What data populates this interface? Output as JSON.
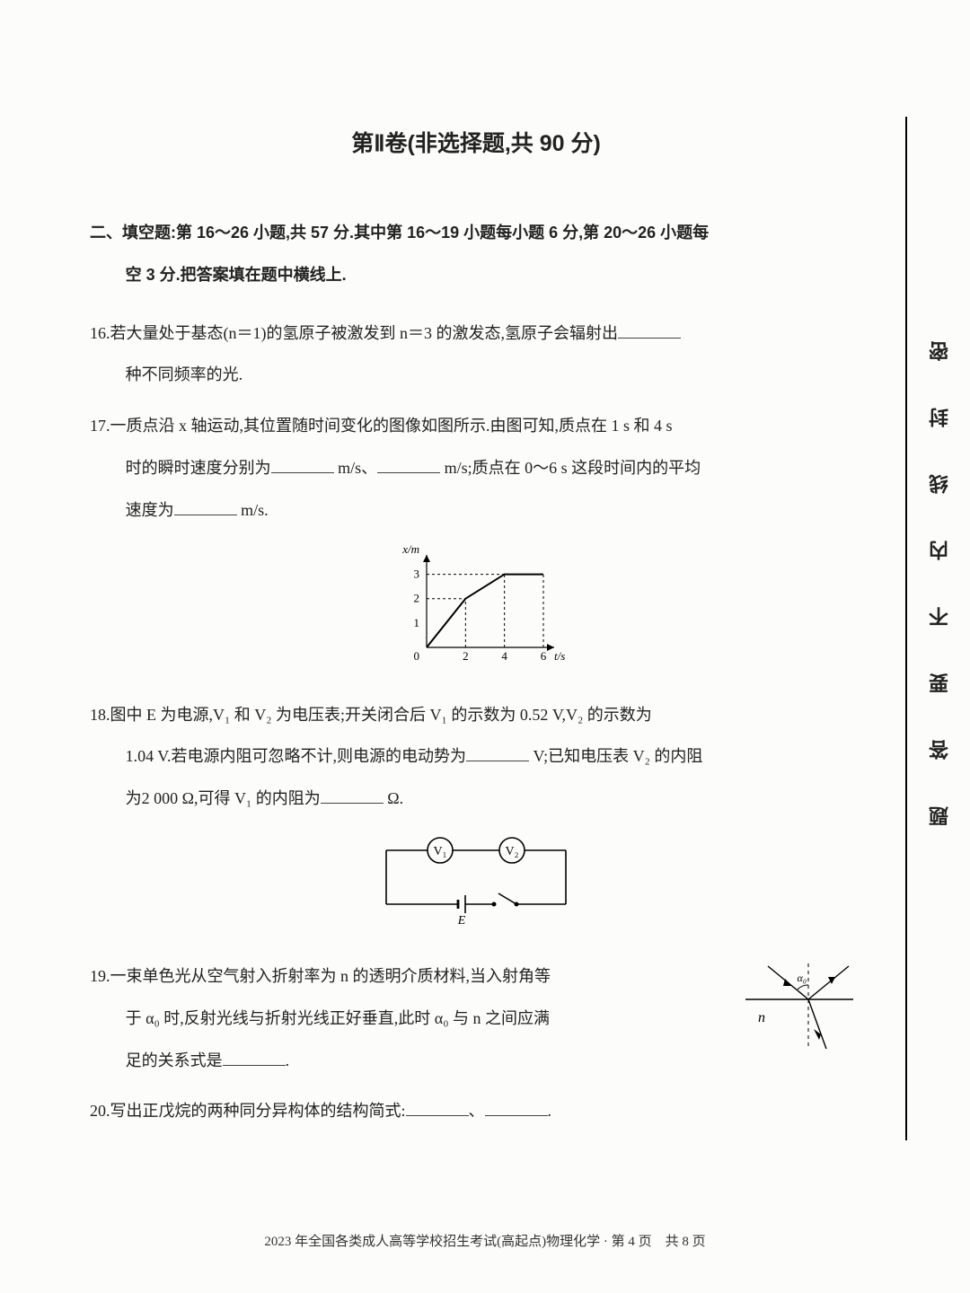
{
  "section_title": "第Ⅱ卷(非选择题,共 90 分)",
  "instruction_l1": "二、填空题:第 16～26 小题,共 57 分.其中第 16～19 小题每小题 6 分,第 20～26 小题每",
  "instruction_l2": "空 3 分.把答案填在题中横线上.",
  "q16_l1": "16.若大量处于基态(n＝1)的氢原子被激发到 n＝3 的激发态,氢原子会辐射出",
  "q16_l2": "种不同频率的光.",
  "q17_l1": "17.一质点沿 x 轴运动,其位置随时间变化的图像如图所示.由图可知,质点在 1 s 和 4 s",
  "q17_l2a": "时的瞬时速度分别为",
  "q17_l2b": " m/s、",
  "q17_l2c": " m/s;质点在 0～6 s 这段时间内的平均",
  "q17_l3a": "速度为",
  "q17_l3b": " m/s.",
  "q18_l1": "18.图中 E 为电源,V₁ 和 V₂ 为电压表;开关闭合后 V₁ 的示数为 0.52 V,V₂ 的示数为",
  "q18_l2a": "1.04 V.若电源内阻可忽略不计,则电源的电动势为",
  "q18_l2b": " V;已知电压表 V₂ 的内阻",
  "q18_l3a": "为2 000 Ω,可得 V₁ 的内阻为",
  "q18_l3b": " Ω.",
  "q19_l1": "19.一束单色光从空气射入折射率为 n 的透明介质材料,当入射角等",
  "q19_l2": "于 α₀ 时,反射光线与折射光线正好垂直,此时 α₀ 与 n 之间应满",
  "q19_l3a": "足的关系式是",
  "q19_l3b": ".",
  "q20_l1a": "20.写出正戊烷的两种同分异构体的结构简式:",
  "q20_l1b": "、",
  "q20_l1c": ".",
  "footer": "2023 年全国各类成人高等学校招生考试(高起点)物理化学 · 第 4 页　共 8 页",
  "margin": {
    "c1": "密",
    "c2": "封",
    "c3": "线",
    "c4": "内",
    "c5": "不",
    "c6": "要",
    "c7": "答",
    "c8": "题"
  },
  "graph": {
    "type": "line",
    "x_label": "t/s",
    "y_label": "x/m",
    "xlim": [
      0,
      6
    ],
    "ylim": [
      0,
      3.5
    ],
    "xtick": [
      2,
      4,
      6
    ],
    "ytick": [
      1,
      2,
      3
    ],
    "points": [
      [
        0,
        0
      ],
      [
        2,
        2
      ],
      [
        4,
        3
      ],
      [
        6,
        3
      ]
    ],
    "dashed_refs": [
      [
        [
          2,
          0
        ],
        [
          2,
          2
        ]
      ],
      [
        [
          0,
          2
        ],
        [
          2,
          2
        ]
      ],
      [
        [
          4,
          0
        ],
        [
          4,
          3
        ]
      ],
      [
        [
          0,
          3
        ],
        [
          6,
          3
        ]
      ],
      [
        [
          6,
          0
        ],
        [
          6,
          3
        ]
      ]
    ],
    "line_color": "#000",
    "line_width": 2.0,
    "axis_color": "#000",
    "axis_width": 1.2,
    "background_color": "#fcfcfa",
    "axis_fontsize": 13
  },
  "circuit": {
    "type": "circuit-diagram",
    "components": [
      "V₁",
      "V₂",
      "E",
      "switch"
    ],
    "stroke": "#000",
    "stroke_width": 1.6,
    "label_fontsize": 14,
    "label_E": "E",
    "meter1": "V₁",
    "meter2": "V₂"
  },
  "optics": {
    "type": "ray-diagram",
    "medium_label": "n",
    "angle_label": "α₀",
    "stroke": "#000",
    "stroke_width": 1.4,
    "normal_dash": "4,4"
  }
}
